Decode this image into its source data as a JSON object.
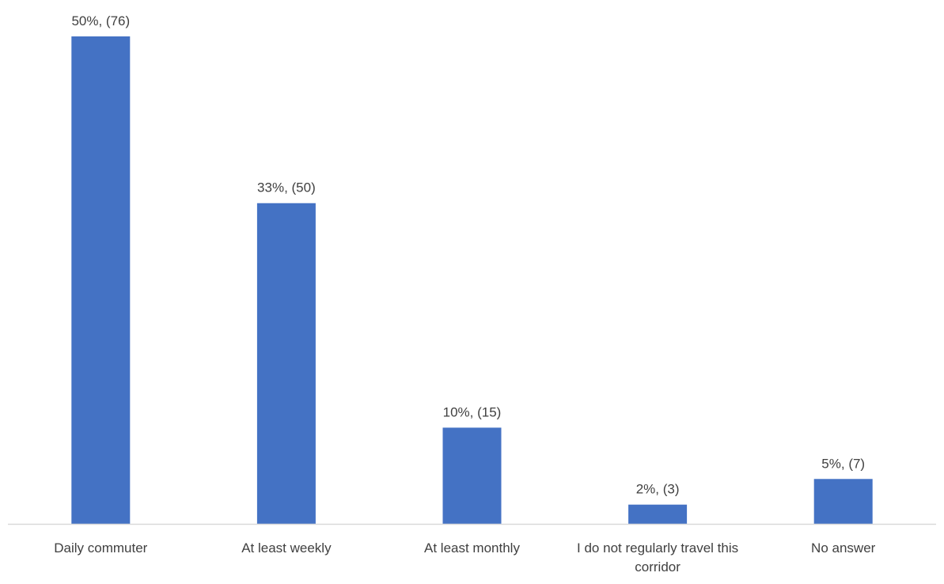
{
  "chart_data": {
    "type": "bar",
    "categories": [
      "Daily commuter",
      "At least weekly",
      "At least monthly",
      "I do not regularly travel this corridor",
      "No answer"
    ],
    "values": [
      76,
      50,
      15,
      3,
      7
    ],
    "value_labels": [
      "50%, (76)",
      "33%, (50)",
      "10%, (15)",
      "2%, (3)",
      "5%, (7)"
    ],
    "color": "#4472c4"
  }
}
